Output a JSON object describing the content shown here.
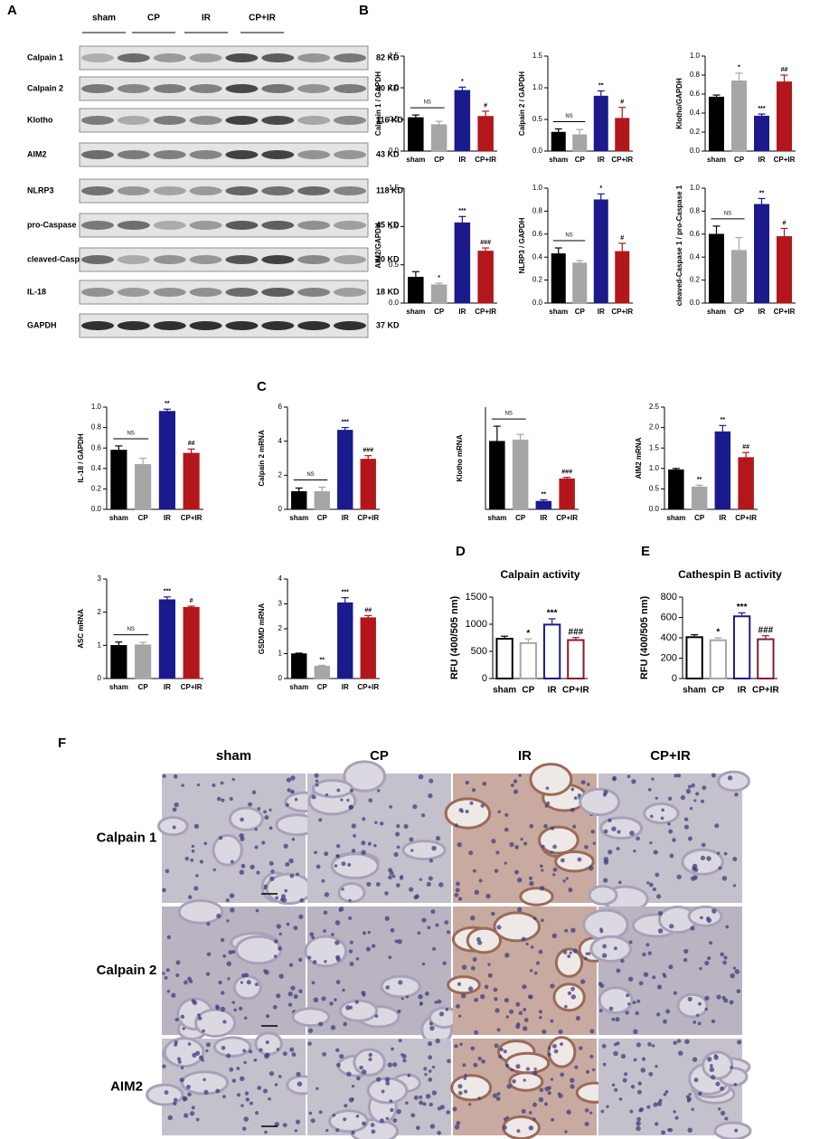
{
  "panel_labels": [
    "A",
    "B",
    "C",
    "D",
    "E",
    "F"
  ],
  "blot": {
    "lanes": [
      "sham",
      "CP",
      "IR",
      "CP+IR"
    ],
    "rows": [
      {
        "label": "Calpain 1",
        "size": "82 KD"
      },
      {
        "label": "Calpain 2",
        "size": "80 KD"
      },
      {
        "label": "Klotho",
        "size": "116 KD"
      },
      {
        "label": "AIM2",
        "size": "43 KD"
      },
      {
        "label": "NLRP3",
        "size": "118 KD"
      },
      {
        "label": "pro-Caspase 1",
        "size": "45 KD"
      },
      {
        "label": "cleaved-Caspase 1",
        "size": "20 KD"
      },
      {
        "label": "IL-18",
        "size": "18 KD"
      },
      {
        "label": "GAPDH",
        "size": "37 KD"
      }
    ]
  },
  "chart_data": [
    {
      "type": "bar",
      "y_label": "Calpain 1 / GAPDH",
      "categories": [
        "sham",
        "CP",
        "IR",
        "CP+IR"
      ],
      "colors": [
        "#000000",
        "#a6a6a6",
        "#1a1a8c",
        "#b3171b"
      ],
      "values": [
        0.53,
        0.42,
        0.96,
        0.55
      ],
      "errors": [
        0.04,
        0.05,
        0.05,
        0.08
      ],
      "significance": [
        null,
        null,
        "*",
        "#"
      ],
      "comparison": "NS",
      "ylim": [
        0,
        1.5
      ],
      "yticks": [
        {
          "value": 0,
          "label": "0.0"
        },
        0.5,
        {
          "value": 1,
          "label": "1.0"
        },
        1.5
      ]
    },
    {
      "type": "bar",
      "y_label": "Calpain 2 / GAPDH",
      "categories": [
        "sham",
        "CP",
        "IR",
        "CP+IR"
      ],
      "colors": [
        "#000000",
        "#a6a6a6",
        "#1a1a8c",
        "#b3171b"
      ],
      "values": [
        0.3,
        0.26,
        0.87,
        0.52
      ],
      "errors": [
        0.05,
        0.08,
        0.08,
        0.17
      ],
      "significance": [
        null,
        null,
        "**",
        "#"
      ],
      "comparison": "NS",
      "ylim": [
        0,
        1.5
      ],
      "yticks": [
        {
          "value": 0,
          "label": "0.0"
        },
        0.5,
        {
          "value": 1,
          "label": "1.0"
        },
        1.5
      ]
    },
    {
      "type": "bar",
      "y_label": "Klotho/GAPDH",
      "categories": [
        "sham",
        "CP",
        "IR",
        "CP+IR"
      ],
      "colors": [
        "#000000",
        "#a6a6a6",
        "#1a1a8c",
        "#b3171b"
      ],
      "values": [
        0.57,
        0.74,
        0.37,
        0.73
      ],
      "errors": [
        0.02,
        0.08,
        0.02,
        0.07
      ],
      "significance": [
        null,
        "*",
        "***",
        "##"
      ],
      "ylim": [
        0,
        1
      ],
      "yticks": [
        {
          "value": 0,
          "label": "0.0"
        },
        0.2,
        0.4,
        0.6,
        0.8,
        {
          "value": 1,
          "label": "1.0"
        }
      ]
    },
    {
      "type": "bar",
      "y_label": "AIM2/GAPDH",
      "categories": [
        "sham",
        "CP",
        "IR",
        "CP+IR"
      ],
      "colors": [
        "#000000",
        "#a6a6a6",
        "#1a1a8c",
        "#b3171b"
      ],
      "values": [
        0.34,
        0.24,
        1.05,
        0.68
      ],
      "errors": [
        0.07,
        0.02,
        0.08,
        0.04
      ],
      "significance": [
        null,
        "*",
        "***",
        "###"
      ],
      "ylim": [
        0,
        1.5
      ],
      "yticks": [
        {
          "value": 0,
          "label": "0.0"
        },
        0.5,
        {
          "value": 1,
          "label": "1.0"
        },
        1.5
      ]
    },
    {
      "type": "bar",
      "y_label": "NLRP3 / GAPDH",
      "categories": [
        "sham",
        "CP",
        "IR",
        "CP+IR"
      ],
      "colors": [
        "#000000",
        "#a6a6a6",
        "#1a1a8c",
        "#b3171b"
      ],
      "values": [
        0.43,
        0.35,
        0.9,
        0.45
      ],
      "errors": [
        0.05,
        0.02,
        0.05,
        0.07
      ],
      "significance": [
        null,
        null,
        "*",
        "#"
      ],
      "comparison": "NS",
      "ylim": [
        0,
        1
      ],
      "yticks": [
        {
          "value": 0,
          "label": "0.0"
        },
        0.2,
        0.4,
        0.6,
        0.8,
        {
          "value": 1,
          "label": "1.0"
        }
      ]
    },
    {
      "type": "bar",
      "y_label": "cleaved-Caspase 1 / pro-Caspase 1",
      "categories": [
        "sham",
        "CP",
        "IR",
        "CP+IR"
      ],
      "colors": [
        "#000000",
        "#a6a6a6",
        "#1a1a8c",
        "#b3171b"
      ],
      "values": [
        0.6,
        0.46,
        0.86,
        0.58
      ],
      "errors": [
        0.07,
        0.11,
        0.05,
        0.07
      ],
      "significance": [
        null,
        null,
        "**",
        "#"
      ],
      "comparison": "NS",
      "ylim": [
        0,
        1
      ],
      "yticks": [
        {
          "value": 0,
          "label": "0.0"
        },
        0.2,
        0.4,
        0.6,
        0.8,
        {
          "value": 1,
          "label": "1.0"
        }
      ]
    },
    {
      "type": "bar",
      "y_label": "IL-18 / GAPDH",
      "categories": [
        "sham",
        "CP",
        "IR",
        "CP+IR"
      ],
      "colors": [
        "#000000",
        "#a6a6a6",
        "#1a1a8c",
        "#b3171b"
      ],
      "values": [
        0.58,
        0.44,
        0.96,
        0.55
      ],
      "errors": [
        0.04,
        0.06,
        0.02,
        0.04
      ],
      "significance": [
        null,
        null,
        "**",
        "##"
      ],
      "comparison": "NS",
      "ylim": [
        0,
        1
      ],
      "yticks": [
        {
          "value": 0,
          "label": "0.0"
        },
        0.2,
        0.4,
        0.6,
        0.8,
        {
          "value": 1,
          "label": "1.0"
        }
      ]
    },
    {
      "type": "bar",
      "y_label": "Calpain 2 mRNA",
      "categories": [
        "sham",
        "CP",
        "IR",
        "CP+IR"
      ],
      "colors": [
        "#000000",
        "#a6a6a6",
        "#1a1a8c",
        "#b3171b"
      ],
      "values": [
        1.05,
        1.05,
        4.65,
        2.95
      ],
      "errors": [
        0.2,
        0.25,
        0.15,
        0.2
      ],
      "significance": [
        null,
        null,
        "***",
        "###"
      ],
      "comparison": "NS",
      "ylim": [
        0,
        6
      ],
      "yticks": [
        0,
        2,
        4,
        6
      ]
    },
    {
      "type": "bar",
      "y_label": "Klotho mRNA",
      "categories": [
        "sham",
        "CP",
        "IR",
        "CP+IR"
      ],
      "colors": [
        "#000000",
        "#a6a6a6",
        "#1a1a8c",
        "#b3171b"
      ],
      "values": [
        1.0,
        1.02,
        0.12,
        0.45
      ],
      "errors": [
        0.22,
        0.08,
        0.02,
        0.02
      ],
      "significance": [
        null,
        null,
        "**",
        "###"
      ],
      "comparison": "NS",
      "ylim": [
        0,
        1.5
      ]
    },
    {
      "type": "bar",
      "y_label": "AIM2 mRNA",
      "categories": [
        "sham",
        "CP",
        "IR",
        "CP+IR"
      ],
      "colors": [
        "#000000",
        "#a6a6a6",
        "#1a1a8c",
        "#b3171b"
      ],
      "values": [
        0.97,
        0.55,
        1.9,
        1.27
      ],
      "errors": [
        0.03,
        0.04,
        0.15,
        0.12
      ],
      "significance": [
        null,
        "**",
        "**",
        "##"
      ],
      "ylim": [
        0,
        2.5
      ],
      "yticks": [
        {
          "value": 0,
          "label": "0.0"
        },
        0.5,
        {
          "value": 1,
          "label": "1.0"
        },
        1.5,
        {
          "value": 2,
          "label": "2.0"
        },
        2.5
      ]
    },
    {
      "type": "bar",
      "y_label": "ASC mRNA",
      "categories": [
        "sham",
        "CP",
        "IR",
        "CP+IR"
      ],
      "colors": [
        "#000000",
        "#a6a6a6",
        "#1a1a8c",
        "#b3171b"
      ],
      "values": [
        1.0,
        1.02,
        2.38,
        2.15
      ],
      "errors": [
        0.1,
        0.07,
        0.08,
        0.03
      ],
      "significance": [
        null,
        null,
        "***",
        "#"
      ],
      "comparison": "NS",
      "ylim": [
        0,
        3
      ],
      "yticks": [
        0,
        1,
        2,
        3
      ]
    },
    {
      "type": "bar",
      "y_label": "GSDMD mRNA",
      "categories": [
        "sham",
        "CP",
        "IR",
        "CP+IR"
      ],
      "colors": [
        "#000000",
        "#a6a6a6",
        "#1a1a8c",
        "#b3171b"
      ],
      "values": [
        1.0,
        0.5,
        3.05,
        2.45
      ],
      "errors": [
        0.02,
        0.03,
        0.2,
        0.08
      ],
      "significance": [
        null,
        "**",
        "***",
        "##"
      ],
      "ylim": [
        0,
        4
      ],
      "yticks": [
        0,
        1,
        2,
        3,
        4
      ]
    },
    {
      "type": "bar",
      "bar_style": "open",
      "title": "Calpain activity",
      "y_label": "RFU (400/505 nm)",
      "categories": [
        "sham",
        "CP",
        "IR",
        "CP+IR"
      ],
      "colors": [
        "#000000",
        "#a6a6a6",
        "#1a1a8c",
        "#8b1a2b"
      ],
      "values": [
        750,
        670,
        1010,
        725
      ],
      "errors": [
        30,
        60,
        90,
        30
      ],
      "significance": [
        null,
        "*",
        "***",
        "###"
      ],
      "ylim": [
        0,
        1500
      ],
      "yticks": [
        0,
        500,
        1000,
        1500
      ]
    },
    {
      "type": "bar",
      "bar_style": "open",
      "title": "Cathespin B activity",
      "y_label": "RFU (400/505 nm)",
      "categories": [
        "sham",
        "CP",
        "IR",
        "CP+IR"
      ],
      "colors": [
        "#000000",
        "#a6a6a6",
        "#1a1a8c",
        "#8b1a2b"
      ],
      "values": [
        415,
        385,
        620,
        395
      ],
      "errors": [
        15,
        15,
        25,
        25
      ],
      "significance": [
        null,
        "*",
        "***",
        "###"
      ],
      "ylim": [
        0,
        800
      ],
      "yticks": [
        0,
        200,
        400,
        600,
        800
      ]
    }
  ],
  "histology": {
    "columns": [
      "sham",
      "CP",
      "IR",
      "CP+IR"
    ],
    "rows": [
      "Calpain 1",
      "Calpain 2",
      "AIM2"
    ]
  }
}
